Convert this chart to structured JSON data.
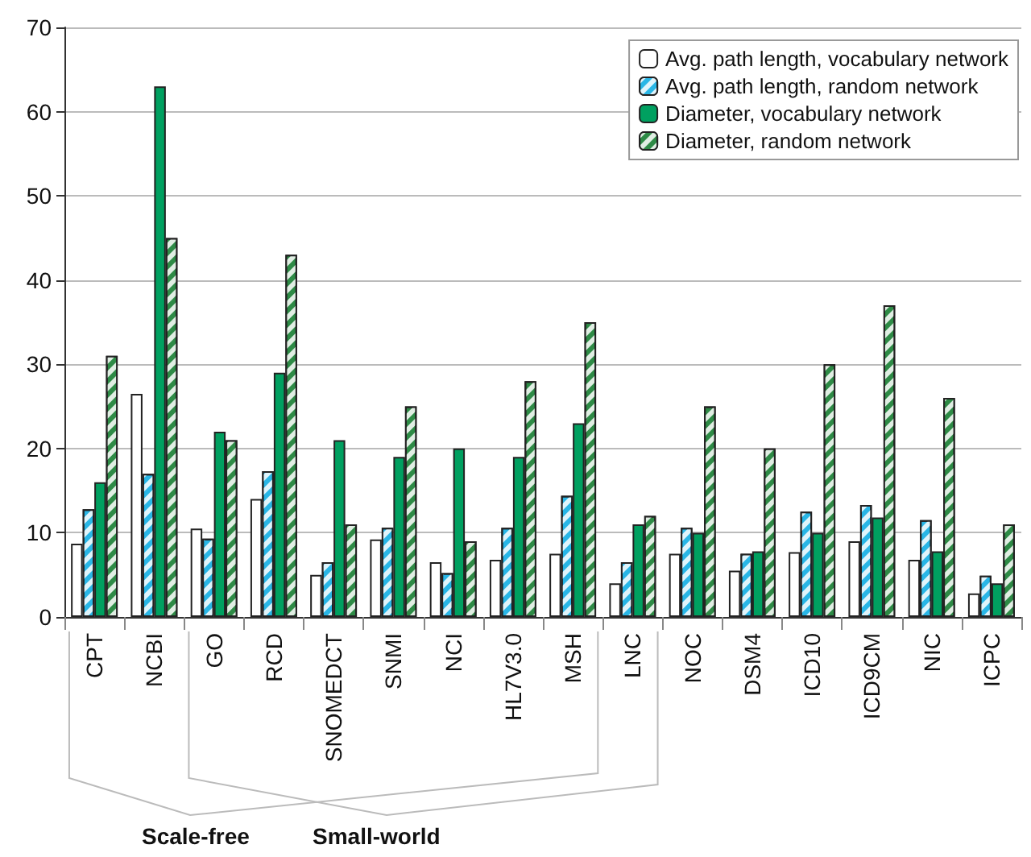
{
  "chart_data": {
    "type": "bar",
    "categories": [
      "CPT",
      "NCBI",
      "GO",
      "RCD",
      "SNOMEDCT",
      "SNMI",
      "NCI",
      "HL7V3.0",
      "MSH",
      "LNC",
      "NOC",
      "DSM4",
      "ICD10",
      "ICD9CM",
      "NIC",
      "ICPC"
    ],
    "series": [
      {
        "name": "Avg. path length, vocabulary network",
        "color": "#ffffff",
        "values": [
          8.7,
          26.5,
          10.5,
          14,
          5,
          9.2,
          6.5,
          6.8,
          7.5,
          4,
          7.5,
          5.5,
          7.7,
          9,
          6.8,
          2.8
        ]
      },
      {
        "name": "Avg. path length, random network",
        "color": "#29b6e6",
        "values": [
          12.8,
          17,
          9.3,
          17.3,
          6.5,
          10.6,
          5.2,
          10.6,
          14.4,
          6.5,
          10.6,
          7.5,
          12.5,
          13.3,
          11.5,
          4.9
        ]
      },
      {
        "name": "Diameter, vocabulary network",
        "color": "#00a060",
        "values": [
          16,
          63,
          22,
          29,
          21,
          19,
          20,
          19,
          23,
          11,
          10,
          7.8,
          10,
          11.8,
          7.8,
          4
        ]
      },
      {
        "name": "Diameter, random network",
        "color": "#2e8b46",
        "values": [
          31,
          45,
          21,
          43,
          11,
          25,
          9,
          28,
          35,
          12,
          25,
          20,
          30,
          37,
          26,
          11
        ]
      }
    ],
    "ylim": [
      0,
      70
    ],
    "yticks": [
      0,
      10,
      20,
      30,
      40,
      50,
      60,
      70
    ],
    "grid": "y",
    "legend": "top right",
    "annotations": [
      "Scale-free",
      "Small-world"
    ]
  }
}
